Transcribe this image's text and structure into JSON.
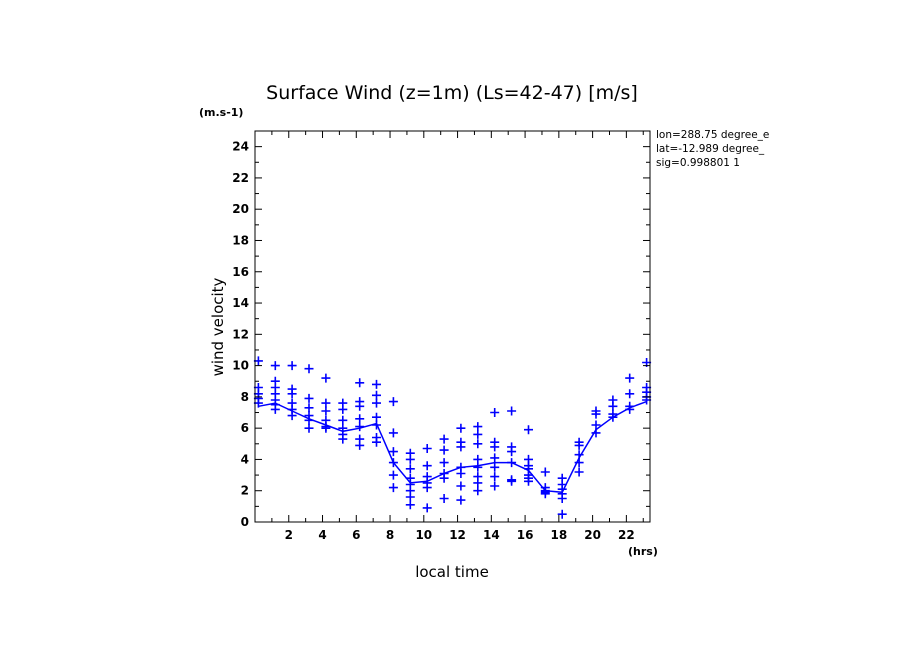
{
  "chart_data": {
    "type": "scatter",
    "title": "Surface Wind (z=1m) (Ls=42-47) [m/s]",
    "ylabel": "wind velocity",
    "yunit": "(m.s-1)",
    "xlabel": "local time",
    "xunit": "(hrs)",
    "xlim": [
      0,
      23.4
    ],
    "ylim": [
      0,
      25
    ],
    "xticks": [
      2,
      4,
      6,
      8,
      10,
      12,
      14,
      16,
      18,
      20,
      22
    ],
    "yticks": [
      0,
      2,
      4,
      6,
      8,
      10,
      12,
      14,
      16,
      18,
      20,
      22,
      24
    ],
    "grid": false,
    "color": "#0000ff",
    "info": [
      "lon=288.75 degree_e",
      "lat=-12.989 degree_",
      "sig=0.998801 1"
    ],
    "series": [
      {
        "type": "line",
        "x": [
          0.2,
          1.2,
          2.2,
          3.2,
          4.2,
          5.2,
          6.2,
          7.2,
          8.2,
          9.2,
          10.2,
          11.2,
          12.2,
          13.2,
          14.2,
          15.2,
          16.2,
          17.2,
          18.2,
          19.2,
          20.2,
          21.2,
          22.2,
          23.2
        ],
        "y": [
          7.4,
          7.6,
          7.1,
          6.6,
          6.2,
          5.8,
          6.0,
          6.3,
          3.8,
          2.5,
          2.6,
          3.1,
          3.5,
          3.6,
          3.8,
          3.8,
          3.3,
          2.0,
          1.9,
          4.1,
          5.9,
          6.7,
          7.3,
          7.7
        ]
      },
      {
        "type": "scatter",
        "marker": "+",
        "points": [
          [
            0.2,
            10.3
          ],
          [
            0.2,
            8.6
          ],
          [
            0.2,
            8.2
          ],
          [
            0.2,
            7.9
          ],
          [
            0.2,
            7.6
          ],
          [
            1.2,
            10.0
          ],
          [
            1.2,
            9.0
          ],
          [
            1.2,
            8.6
          ],
          [
            1.2,
            8.2
          ],
          [
            1.2,
            7.8
          ],
          [
            1.2,
            7.5
          ],
          [
            1.2,
            7.2
          ],
          [
            2.2,
            10.0
          ],
          [
            2.2,
            8.5
          ],
          [
            2.2,
            8.2
          ],
          [
            2.2,
            7.6
          ],
          [
            2.2,
            7.2
          ],
          [
            2.2,
            6.8
          ],
          [
            3.2,
            9.8
          ],
          [
            3.2,
            7.9
          ],
          [
            3.2,
            7.3
          ],
          [
            3.2,
            6.8
          ],
          [
            3.2,
            6.5
          ],
          [
            3.2,
            6.0
          ],
          [
            4.2,
            9.2
          ],
          [
            4.2,
            7.6
          ],
          [
            4.2,
            7.1
          ],
          [
            4.2,
            6.5
          ],
          [
            4.2,
            6.1
          ],
          [
            4.2,
            6.0
          ],
          [
            5.2,
            7.6
          ],
          [
            5.2,
            7.2
          ],
          [
            5.2,
            6.5
          ],
          [
            5.2,
            6.0
          ],
          [
            5.2,
            5.6
          ],
          [
            5.2,
            5.3
          ],
          [
            6.2,
            8.9
          ],
          [
            6.2,
            7.7
          ],
          [
            6.2,
            7.4
          ],
          [
            6.2,
            6.6
          ],
          [
            6.2,
            6.1
          ],
          [
            6.2,
            5.3
          ],
          [
            6.2,
            4.9
          ],
          [
            7.2,
            8.8
          ],
          [
            7.2,
            8.1
          ],
          [
            7.2,
            7.6
          ],
          [
            7.2,
            6.7
          ],
          [
            7.2,
            6.2
          ],
          [
            7.2,
            5.4
          ],
          [
            7.2,
            5.1
          ],
          [
            8.2,
            7.7
          ],
          [
            8.2,
            5.7
          ],
          [
            8.2,
            4.5
          ],
          [
            8.2,
            3.8
          ],
          [
            8.2,
            3.0
          ],
          [
            8.2,
            2.2
          ],
          [
            9.2,
            4.4
          ],
          [
            9.2,
            4.0
          ],
          [
            9.2,
            3.4
          ],
          [
            9.2,
            2.8
          ],
          [
            9.2,
            2.4
          ],
          [
            9.2,
            2.0
          ],
          [
            9.2,
            1.6
          ],
          [
            9.2,
            1.1
          ],
          [
            10.2,
            4.7
          ],
          [
            10.2,
            3.6
          ],
          [
            10.2,
            2.9
          ],
          [
            10.2,
            2.5
          ],
          [
            10.2,
            2.2
          ],
          [
            10.2,
            0.9
          ],
          [
            11.2,
            5.3
          ],
          [
            11.2,
            4.6
          ],
          [
            11.2,
            3.8
          ],
          [
            11.2,
            3.1
          ],
          [
            11.2,
            2.8
          ],
          [
            11.2,
            1.5
          ],
          [
            12.2,
            6.0
          ],
          [
            12.2,
            5.1
          ],
          [
            12.2,
            4.8
          ],
          [
            12.2,
            3.5
          ],
          [
            12.2,
            3.1
          ],
          [
            12.2,
            2.3
          ],
          [
            12.2,
            1.4
          ],
          [
            13.2,
            6.1
          ],
          [
            13.2,
            5.6
          ],
          [
            13.2,
            5.0
          ],
          [
            13.2,
            4.0
          ],
          [
            13.2,
            3.5
          ],
          [
            13.2,
            2.9
          ],
          [
            13.2,
            2.5
          ],
          [
            13.2,
            2.0
          ],
          [
            14.2,
            7.0
          ],
          [
            14.2,
            5.1
          ],
          [
            14.2,
            4.8
          ],
          [
            14.2,
            4.1
          ],
          [
            14.2,
            3.5
          ],
          [
            14.2,
            2.9
          ],
          [
            14.2,
            2.3
          ],
          [
            15.2,
            7.1
          ],
          [
            15.2,
            4.8
          ],
          [
            15.2,
            4.5
          ],
          [
            15.2,
            3.8
          ],
          [
            15.2,
            2.7
          ],
          [
            15.2,
            2.6
          ],
          [
            16.2,
            5.9
          ],
          [
            16.2,
            4.0
          ],
          [
            16.2,
            3.6
          ],
          [
            16.2,
            3.4
          ],
          [
            16.2,
            3.0
          ],
          [
            16.2,
            2.8
          ],
          [
            16.2,
            2.6
          ],
          [
            17.2,
            3.2
          ],
          [
            17.2,
            2.2
          ],
          [
            17.2,
            2.0
          ],
          [
            17.2,
            1.9
          ],
          [
            17.2,
            1.8
          ],
          [
            18.2,
            2.8
          ],
          [
            18.2,
            2.4
          ],
          [
            18.2,
            2.1
          ],
          [
            18.2,
            1.8
          ],
          [
            18.2,
            1.5
          ],
          [
            18.2,
            0.5
          ],
          [
            19.2,
            5.1
          ],
          [
            19.2,
            4.9
          ],
          [
            19.2,
            4.3
          ],
          [
            19.2,
            3.8
          ],
          [
            19.2,
            3.2
          ],
          [
            20.2,
            7.1
          ],
          [
            20.2,
            6.9
          ],
          [
            20.2,
            6.2
          ],
          [
            20.2,
            5.7
          ],
          [
            21.2,
            7.8
          ],
          [
            21.2,
            7.4
          ],
          [
            21.2,
            6.9
          ],
          [
            21.2,
            6.7
          ],
          [
            22.2,
            9.2
          ],
          [
            22.2,
            8.2
          ],
          [
            22.2,
            7.4
          ],
          [
            22.2,
            7.2
          ],
          [
            23.2,
            10.2
          ],
          [
            23.2,
            8.6
          ],
          [
            23.2,
            8.3
          ],
          [
            23.2,
            8.0
          ],
          [
            23.2,
            7.8
          ]
        ]
      }
    ]
  }
}
